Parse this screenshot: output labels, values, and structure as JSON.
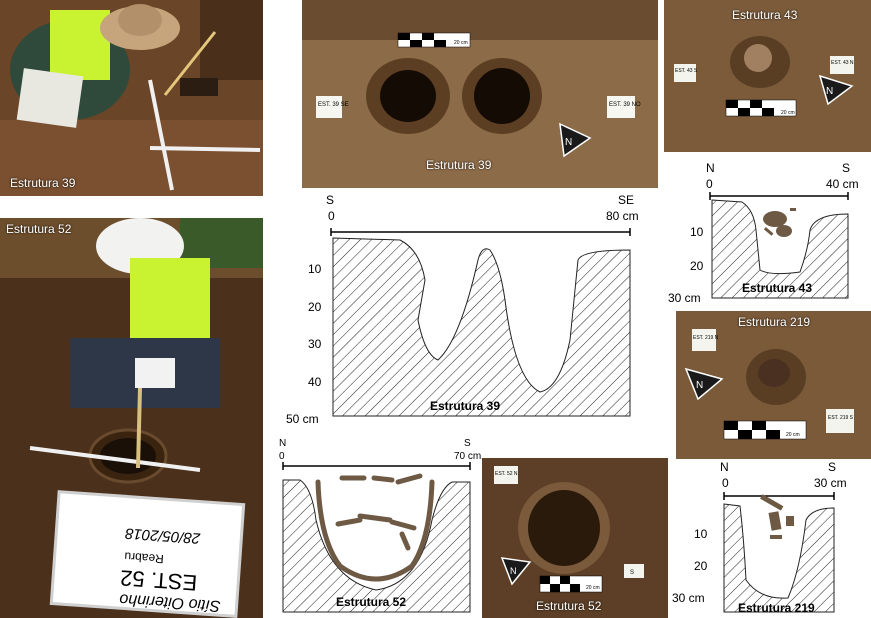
{
  "colors": {
    "soil_dark": "#3e2a18",
    "soil_mid": "#6b4a2c",
    "soil_light": "#8a6a48",
    "ceramic": "#6e5a44",
    "vest": "#b8e02a",
    "hatch": "#222222"
  },
  "photos": {
    "p1": {
      "label": "Estrutura 39"
    },
    "p2": {
      "label": "Estrutura 39",
      "tag_left": "EST. 39 SE",
      "tag_right": "EST. 39 NO",
      "scale": "20 cm"
    },
    "p3": {
      "label": "Estrutura 43",
      "tag_left": "EST. 43 S",
      "tag_right": "EST. 43 N",
      "scale": "20 cm"
    },
    "p4": {
      "label": "Estrutura 52"
    },
    "p5": {
      "label": "Estrutura 52",
      "tag_left": "EST. 52 N",
      "tag_right": "S",
      "scale": "20 cm"
    },
    "p6": {
      "label": "Estrutura 219",
      "tag_left": "EST. 219 N",
      "tag_right": "EST. 219 S",
      "scale": "20 cm"
    }
  },
  "board": {
    "line1": "Sítio Oiterinho",
    "line2": "EST. 52",
    "line3": "Reabru",
    "line4": "28/05/2018"
  },
  "north_symbol": "N",
  "profiles": {
    "e39": {
      "title": "Estrutura 39",
      "left_dir": "S",
      "right_dir": "SE",
      "x_start": "0",
      "x_end": "80 cm",
      "depth_ticks": [
        "10",
        "20",
        "30",
        "40"
      ],
      "depth_end": "50 cm"
    },
    "e43": {
      "title": "Estrutura 43",
      "left_dir": "N",
      "right_dir": "S",
      "x_start": "0",
      "x_end": "40 cm",
      "depth_ticks": [
        "10",
        "20"
      ],
      "depth_end": "30 cm"
    },
    "e52": {
      "title": "Estrutura 52",
      "left_dir": "N",
      "right_dir": "S",
      "x_start": "0",
      "x_end": "70 cm"
    },
    "e219": {
      "title": "Estrutura 219",
      "left_dir": "N",
      "right_dir": "S",
      "x_start": "0",
      "x_end": "30 cm",
      "depth_ticks": [
        "10",
        "20"
      ],
      "depth_end": "30 cm"
    }
  }
}
